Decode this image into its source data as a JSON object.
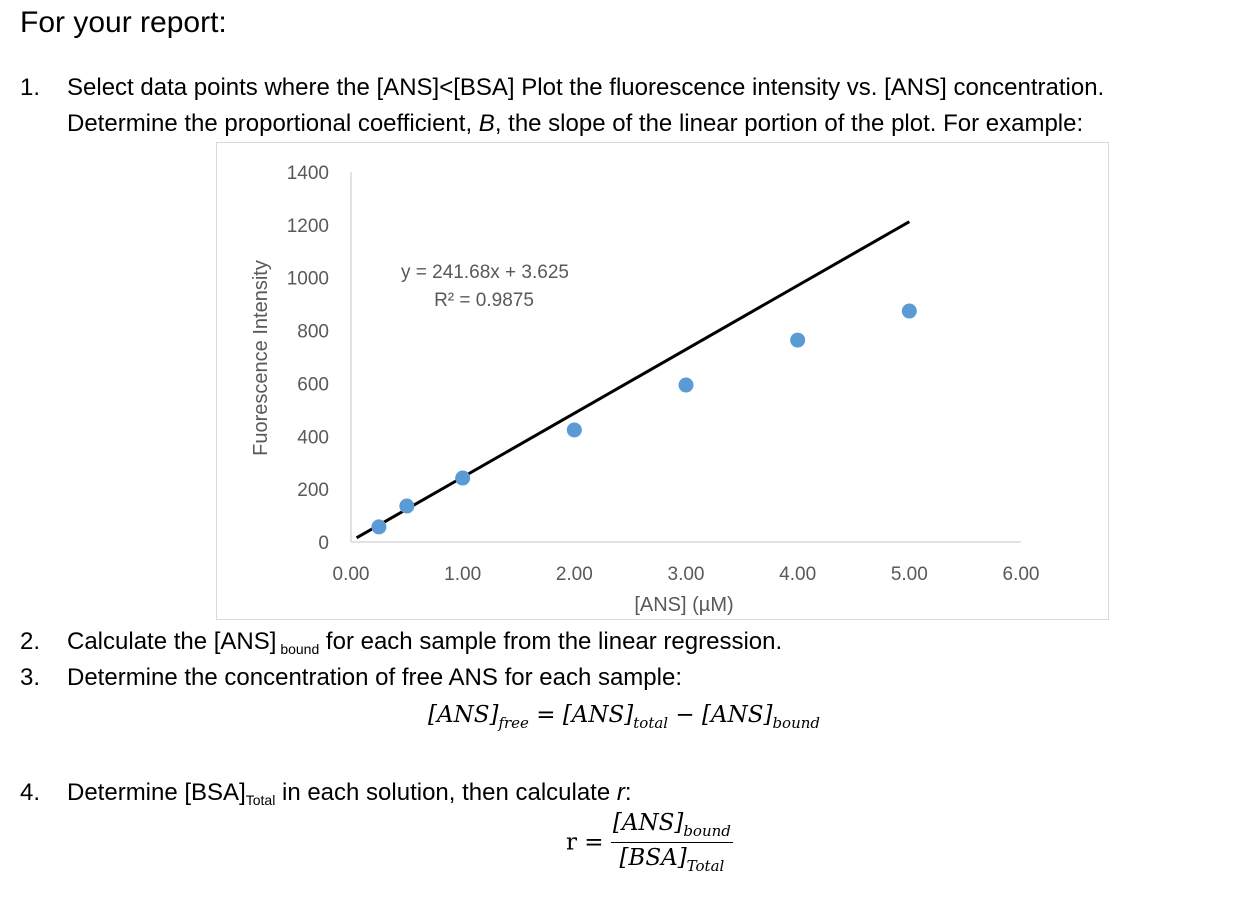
{
  "heading": "For your report:",
  "steps": [
    {
      "number": "1.",
      "line1": "Select data points where the [ANS]<[BSA] Plot the fluorescence intensity vs. [ANS] concentration.",
      "line2_before": "Determine the proportional coefficient, ",
      "line2_italic": "B",
      "line2_after": ", the slope of the linear portion of the plot. For example:"
    },
    {
      "number": "2.",
      "text_before": "Calculate the [ANS]",
      "text_sub": " bound",
      "text_after": " for each sample from the linear regression."
    },
    {
      "number": "3.",
      "text": "Determine the concentration of free ANS for each sample:",
      "equation": {
        "lhs": "[ANS]",
        "lhs_sub": "free",
        "eq": " = ",
        "t1": "[ANS]",
        "t1_sub": "total",
        "minus": " − ",
        "t2": "[ANS]",
        "t2_sub": "bound"
      }
    },
    {
      "number": "4.",
      "text_before": "Determine [BSA]",
      "text_sub": "Total",
      "text_mid": " in each solution, then calculate ",
      "text_italic": "r",
      "text_after": ":",
      "equation": {
        "lhs": "r = ",
        "num": "[ANS]",
        "num_sub": "bound",
        "den": "[BSA]",
        "den_sub": "Total"
      }
    }
  ],
  "chart_data": {
    "type": "scatter",
    "title": "",
    "xlabel": "[ANS] (µM)",
    "ylabel": "Fuorescence Intensity",
    "xlim": [
      0,
      6
    ],
    "ylim": [
      0,
      1400
    ],
    "x_ticks": [
      "0.00",
      "1.00",
      "2.00",
      "3.00",
      "4.00",
      "5.00",
      "6.00"
    ],
    "y_ticks": [
      "0",
      "200",
      "400",
      "600",
      "800",
      "1000",
      "1200",
      "1400"
    ],
    "grid": false,
    "legend": "none",
    "series": [
      {
        "name": "Fluorescence",
        "color": "#5B9BD5",
        "x": [
          0.25,
          0.5,
          1.0,
          2.0,
          3.0,
          4.0,
          5.0
        ],
        "y": [
          57,
          136,
          242,
          424,
          594,
          764,
          874
        ]
      }
    ],
    "trendline": {
      "type": "linear",
      "slope": 241.68,
      "intercept": 3.625,
      "x_range": [
        0.05,
        5.0
      ],
      "color": "#000000",
      "equation_label": "y = 241.68x + 3.625",
      "r2_label": "R² = 0.9875"
    }
  }
}
